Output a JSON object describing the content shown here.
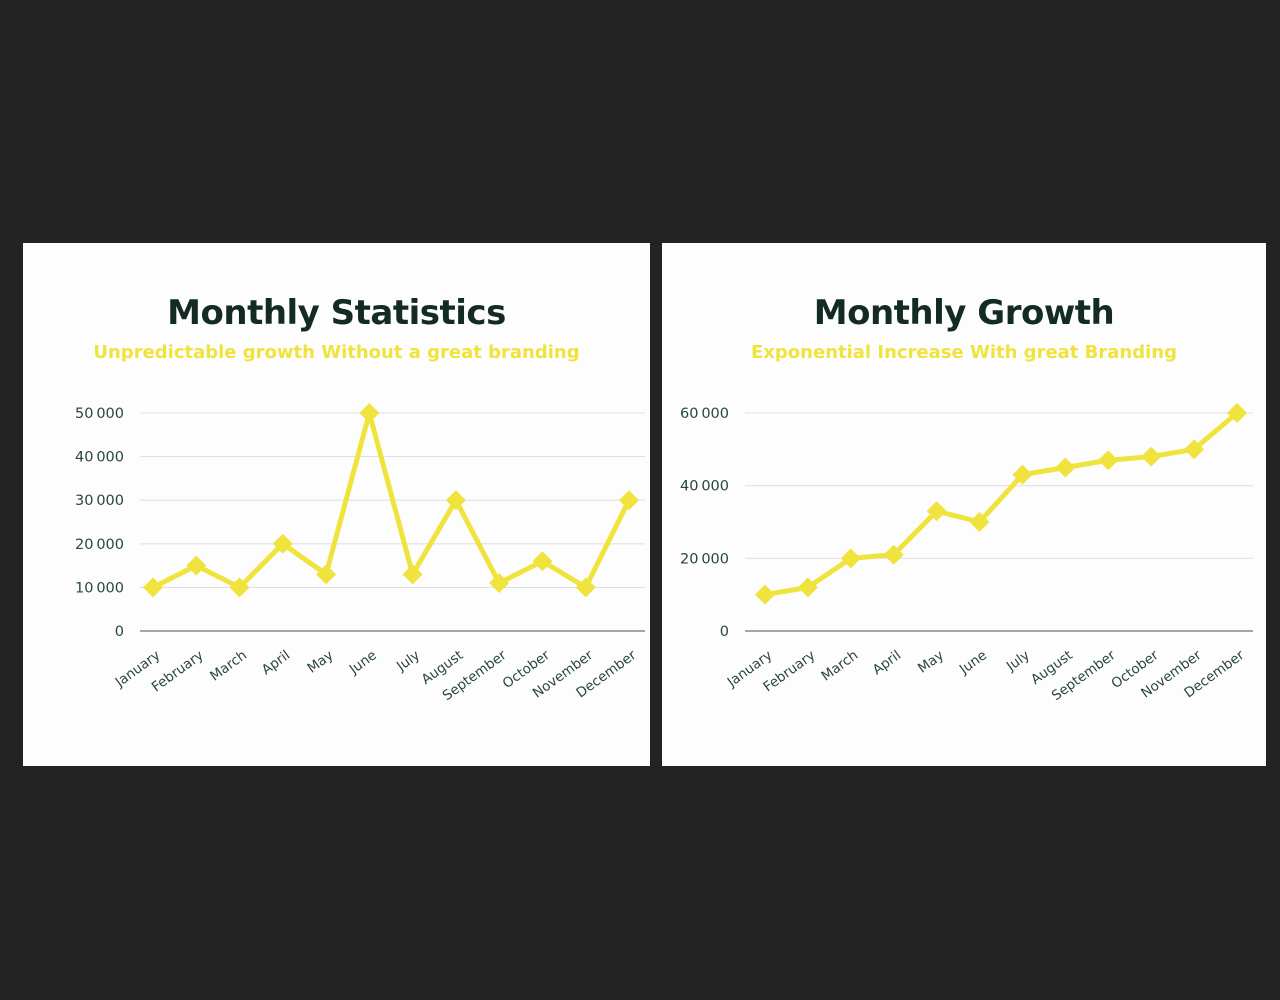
{
  "page": {
    "background_color": "#232323"
  },
  "panels": {
    "background_color": "#FDFDFD"
  },
  "colors": {
    "accent_yellow": "#F0E33E",
    "title_green": "#132B21",
    "axis_text_green": "#27463B",
    "gridline_gray": "#E1E1E1",
    "axis_line_gray": "#7E8D86"
  },
  "chart_data": [
    {
      "type": "line",
      "title": "Monthly Statistics",
      "subtitle": "Unpredictable growth Without a great branding",
      "categories": [
        "January",
        "February",
        "March",
        "April",
        "May",
        "June",
        "July",
        "August",
        "September",
        "October",
        "November",
        "December"
      ],
      "values": [
        10000,
        15000,
        10000,
        20000,
        13000,
        50000,
        13000,
        30000,
        11000,
        16000,
        10000,
        30000
      ],
      "xlabel": "",
      "ylabel": "",
      "ylim": [
        0,
        50000
      ],
      "yticks": [
        0,
        10000,
        20000,
        30000,
        40000,
        50000
      ],
      "ytick_labels": [
        "0",
        "10 000",
        "20 000",
        "30 000",
        "40 000",
        "50 000"
      ],
      "grid": "horizontal",
      "legend": "none",
      "line_color": "#F0E33E",
      "marker": "diamond"
    },
    {
      "type": "line",
      "title": "Monthly Growth",
      "subtitle": "Exponential Increase With great Branding",
      "categories": [
        "January",
        "February",
        "March",
        "April",
        "May",
        "June",
        "July",
        "August",
        "September",
        "October",
        "November",
        "December"
      ],
      "values": [
        10000,
        12000,
        20000,
        21000,
        33000,
        30000,
        43000,
        45000,
        47000,
        48000,
        50000,
        60000
      ],
      "xlabel": "",
      "ylabel": "",
      "ylim": [
        0,
        60000
      ],
      "yticks": [
        0,
        20000,
        40000,
        60000
      ],
      "ytick_labels": [
        "0",
        "20 000",
        "40 000",
        "60 000"
      ],
      "grid": "horizontal",
      "legend": "none",
      "line_color": "#F0E33E",
      "marker": "diamond"
    }
  ]
}
